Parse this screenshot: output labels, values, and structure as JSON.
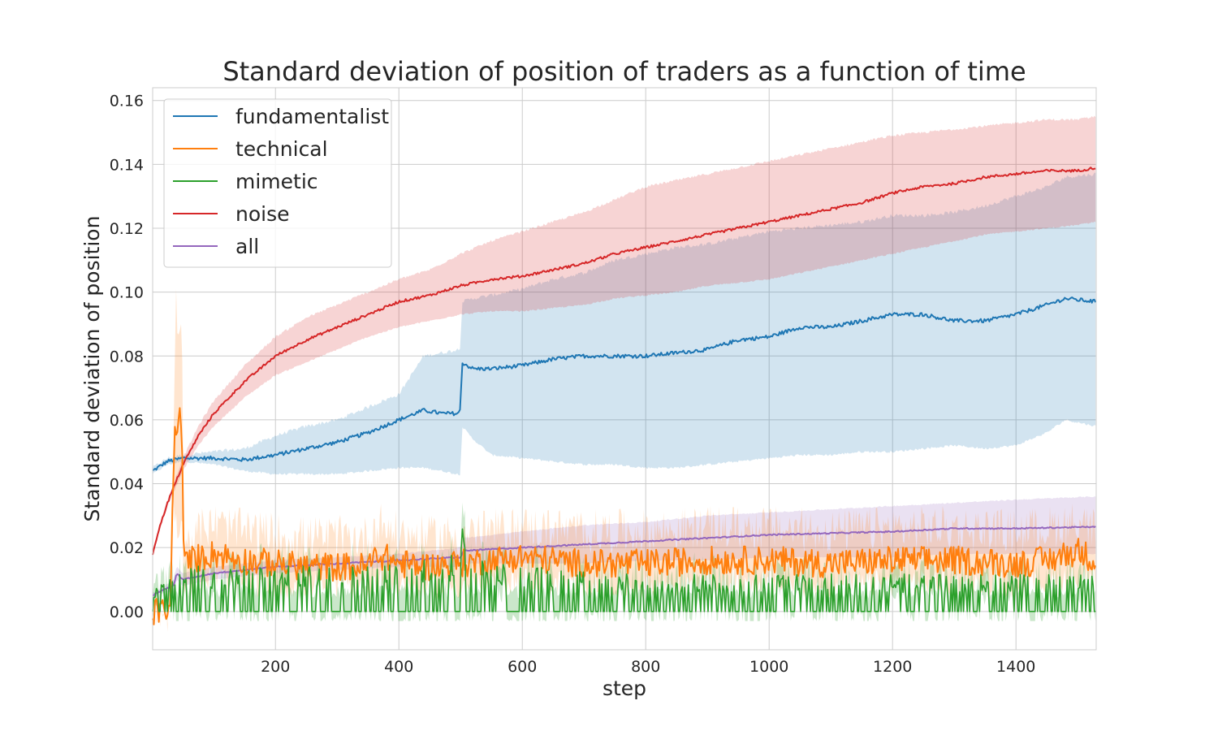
{
  "chart_data": {
    "type": "line",
    "title": "Standard deviation of position of traders as a function of time",
    "xlabel": "step",
    "ylabel": "Standard deviation of position",
    "xlim": [
      1,
      1530
    ],
    "ylim": [
      -0.012,
      0.164
    ],
    "xticks": [
      200,
      400,
      600,
      800,
      1000,
      1200,
      1400
    ],
    "yticks": [
      0.0,
      0.02,
      0.04,
      0.06,
      0.08,
      0.1,
      0.12,
      0.14,
      0.16
    ],
    "grid": true,
    "legend_position": "upper-left",
    "series": [
      {
        "name": "fundamentalist",
        "color": "#1f77b4",
        "x": [
          1,
          25,
          50,
          100,
          150,
          200,
          250,
          300,
          350,
          400,
          440,
          470,
          495,
          500,
          502,
          520,
          550,
          600,
          650,
          700,
          750,
          800,
          850,
          900,
          950,
          1000,
          1050,
          1100,
          1150,
          1200,
          1250,
          1300,
          1350,
          1400,
          1450,
          1480,
          1530
        ],
        "values": [
          0.044,
          0.047,
          0.048,
          0.048,
          0.0475,
          0.049,
          0.051,
          0.053,
          0.056,
          0.06,
          0.063,
          0.062,
          0.062,
          0.063,
          0.078,
          0.076,
          0.076,
          0.077,
          0.079,
          0.08,
          0.08,
          0.08,
          0.081,
          0.082,
          0.085,
          0.086,
          0.089,
          0.089,
          0.091,
          0.093,
          0.093,
          0.091,
          0.091,
          0.093,
          0.096,
          0.098,
          0.097
        ],
        "upper": [
          0.045,
          0.048,
          0.049,
          0.05,
          0.051,
          0.055,
          0.058,
          0.06,
          0.064,
          0.068,
          0.08,
          0.081,
          0.082,
          0.083,
          0.097,
          0.098,
          0.099,
          0.101,
          0.104,
          0.106,
          0.11,
          0.112,
          0.114,
          0.115,
          0.117,
          0.119,
          0.12,
          0.121,
          0.122,
          0.124,
          0.124,
          0.125,
          0.127,
          0.13,
          0.133,
          0.136,
          0.137
        ],
        "lower": [
          0.043,
          0.046,
          0.047,
          0.046,
          0.044,
          0.043,
          0.043,
          0.043,
          0.044,
          0.045,
          0.045,
          0.044,
          0.043,
          0.043,
          0.058,
          0.054,
          0.049,
          0.048,
          0.047,
          0.046,
          0.046,
          0.045,
          0.045,
          0.046,
          0.047,
          0.048,
          0.049,
          0.049,
          0.05,
          0.05,
          0.051,
          0.052,
          0.051,
          0.052,
          0.056,
          0.06,
          0.058
        ]
      },
      {
        "name": "technical",
        "color": "#ff7f0e",
        "x": [
          1,
          30,
          35,
          38,
          42,
          45,
          48,
          52,
          60,
          80,
          100,
          150,
          200,
          250,
          300,
          350,
          365,
          400,
          450,
          500,
          550,
          600,
          700,
          800,
          900,
          1000,
          1100,
          1200,
          1300,
          1400,
          1450,
          1500,
          1530
        ],
        "values": [
          0.0,
          0.0,
          0.048,
          0.06,
          0.057,
          0.06,
          0.059,
          0.014,
          0.016,
          0.017,
          0.018,
          0.016,
          0.015,
          0.014,
          0.014,
          0.014,
          0.018,
          0.015,
          0.014,
          0.015,
          0.016,
          0.017,
          0.015,
          0.015,
          0.016,
          0.016,
          0.015,
          0.016,
          0.016,
          0.015,
          0.016,
          0.019,
          0.016
        ],
        "upper": [
          0.0,
          0.0,
          0.06,
          0.097,
          0.092,
          0.094,
          0.09,
          0.02,
          0.023,
          0.026,
          0.027,
          0.025,
          0.024,
          0.023,
          0.023,
          0.023,
          0.028,
          0.024,
          0.023,
          0.024,
          0.025,
          0.026,
          0.025,
          0.025,
          0.026,
          0.026,
          0.025,
          0.026,
          0.026,
          0.025,
          0.026,
          0.028,
          0.025
        ],
        "lower": [
          0.0,
          0.0,
          0.036,
          0.028,
          0.026,
          0.028,
          0.03,
          0.008,
          0.009,
          0.01,
          0.011,
          0.009,
          0.008,
          0.008,
          0.008,
          0.008,
          0.01,
          0.008,
          0.008,
          0.008,
          0.009,
          0.01,
          0.008,
          0.008,
          0.009,
          0.009,
          0.008,
          0.009,
          0.009,
          0.008,
          0.009,
          0.011,
          0.009
        ]
      },
      {
        "name": "mimetic",
        "color": "#2ca02c",
        "x": [
          1,
          50,
          100,
          200,
          300,
          400,
          500,
          502,
          510,
          600,
          700,
          800,
          900,
          1000,
          1100,
          1200,
          1300,
          1400,
          1530
        ],
        "values": [
          0.005,
          0.006,
          0.006,
          0.006,
          0.006,
          0.006,
          0.007,
          0.031,
          0.007,
          0.006,
          0.005,
          0.005,
          0.005,
          0.005,
          0.005,
          0.005,
          0.005,
          0.005,
          0.005
        ],
        "upper": [
          0.007,
          0.016,
          0.016,
          0.016,
          0.016,
          0.017,
          0.02,
          0.045,
          0.019,
          0.016,
          0.014,
          0.013,
          0.013,
          0.013,
          0.013,
          0.013,
          0.013,
          0.013,
          0.013
        ],
        "lower": [
          0.004,
          0.0,
          0.0,
          0.0,
          0.0,
          0.0,
          0.0,
          0.0,
          0.0,
          0.0,
          0.0,
          0.0,
          0.0,
          0.0,
          0.0,
          0.0,
          0.0,
          0.0,
          0.0
        ]
      },
      {
        "name": "noise",
        "color": "#d62728",
        "x": [
          1,
          10,
          25,
          50,
          75,
          100,
          150,
          200,
          250,
          300,
          350,
          400,
          450,
          500,
          550,
          600,
          650,
          700,
          750,
          800,
          850,
          900,
          950,
          1000,
          1050,
          1100,
          1150,
          1200,
          1250,
          1300,
          1350,
          1400,
          1450,
          1500,
          1530
        ],
        "values": [
          0.018,
          0.025,
          0.034,
          0.046,
          0.055,
          0.062,
          0.072,
          0.08,
          0.085,
          0.089,
          0.093,
          0.097,
          0.099,
          0.102,
          0.104,
          0.105,
          0.107,
          0.109,
          0.112,
          0.114,
          0.116,
          0.118,
          0.12,
          0.122,
          0.124,
          0.126,
          0.128,
          0.131,
          0.133,
          0.134,
          0.136,
          0.137,
          0.138,
          0.138,
          0.139
        ],
        "upper": [
          0.019,
          0.026,
          0.035,
          0.048,
          0.058,
          0.066,
          0.077,
          0.086,
          0.092,
          0.096,
          0.1,
          0.104,
          0.107,
          0.112,
          0.116,
          0.119,
          0.122,
          0.125,
          0.129,
          0.133,
          0.135,
          0.137,
          0.139,
          0.141,
          0.143,
          0.145,
          0.147,
          0.149,
          0.15,
          0.151,
          0.152,
          0.153,
          0.154,
          0.154,
          0.155
        ],
        "lower": [
          0.017,
          0.024,
          0.033,
          0.044,
          0.052,
          0.058,
          0.067,
          0.074,
          0.078,
          0.082,
          0.086,
          0.089,
          0.091,
          0.093,
          0.094,
          0.094,
          0.095,
          0.096,
          0.098,
          0.099,
          0.1,
          0.102,
          0.103,
          0.104,
          0.106,
          0.108,
          0.11,
          0.112,
          0.114,
          0.116,
          0.118,
          0.119,
          0.12,
          0.121,
          0.122
        ]
      },
      {
        "name": "all",
        "color": "#9467bd",
        "x": [
          1,
          20,
          35,
          40,
          50,
          100,
          200,
          300,
          400,
          500,
          505,
          600,
          700,
          800,
          900,
          1000,
          1100,
          1200,
          1300,
          1400,
          1530
        ],
        "values": [
          0.005,
          0.007,
          0.008,
          0.012,
          0.01,
          0.012,
          0.014,
          0.015,
          0.016,
          0.017,
          0.019,
          0.02,
          0.021,
          0.022,
          0.023,
          0.024,
          0.0245,
          0.025,
          0.026,
          0.026,
          0.0265
        ],
        "upper": [
          0.006,
          0.008,
          0.01,
          0.014,
          0.012,
          0.014,
          0.016,
          0.017,
          0.018,
          0.02,
          0.023,
          0.025,
          0.027,
          0.028,
          0.03,
          0.031,
          0.032,
          0.033,
          0.034,
          0.035,
          0.036
        ],
        "lower": [
          0.004,
          0.006,
          0.006,
          0.01,
          0.008,
          0.01,
          0.012,
          0.013,
          0.014,
          0.014,
          0.015,
          0.015,
          0.015,
          0.016,
          0.016,
          0.017,
          0.017,
          0.017,
          0.018,
          0.018,
          0.018
        ]
      }
    ]
  }
}
